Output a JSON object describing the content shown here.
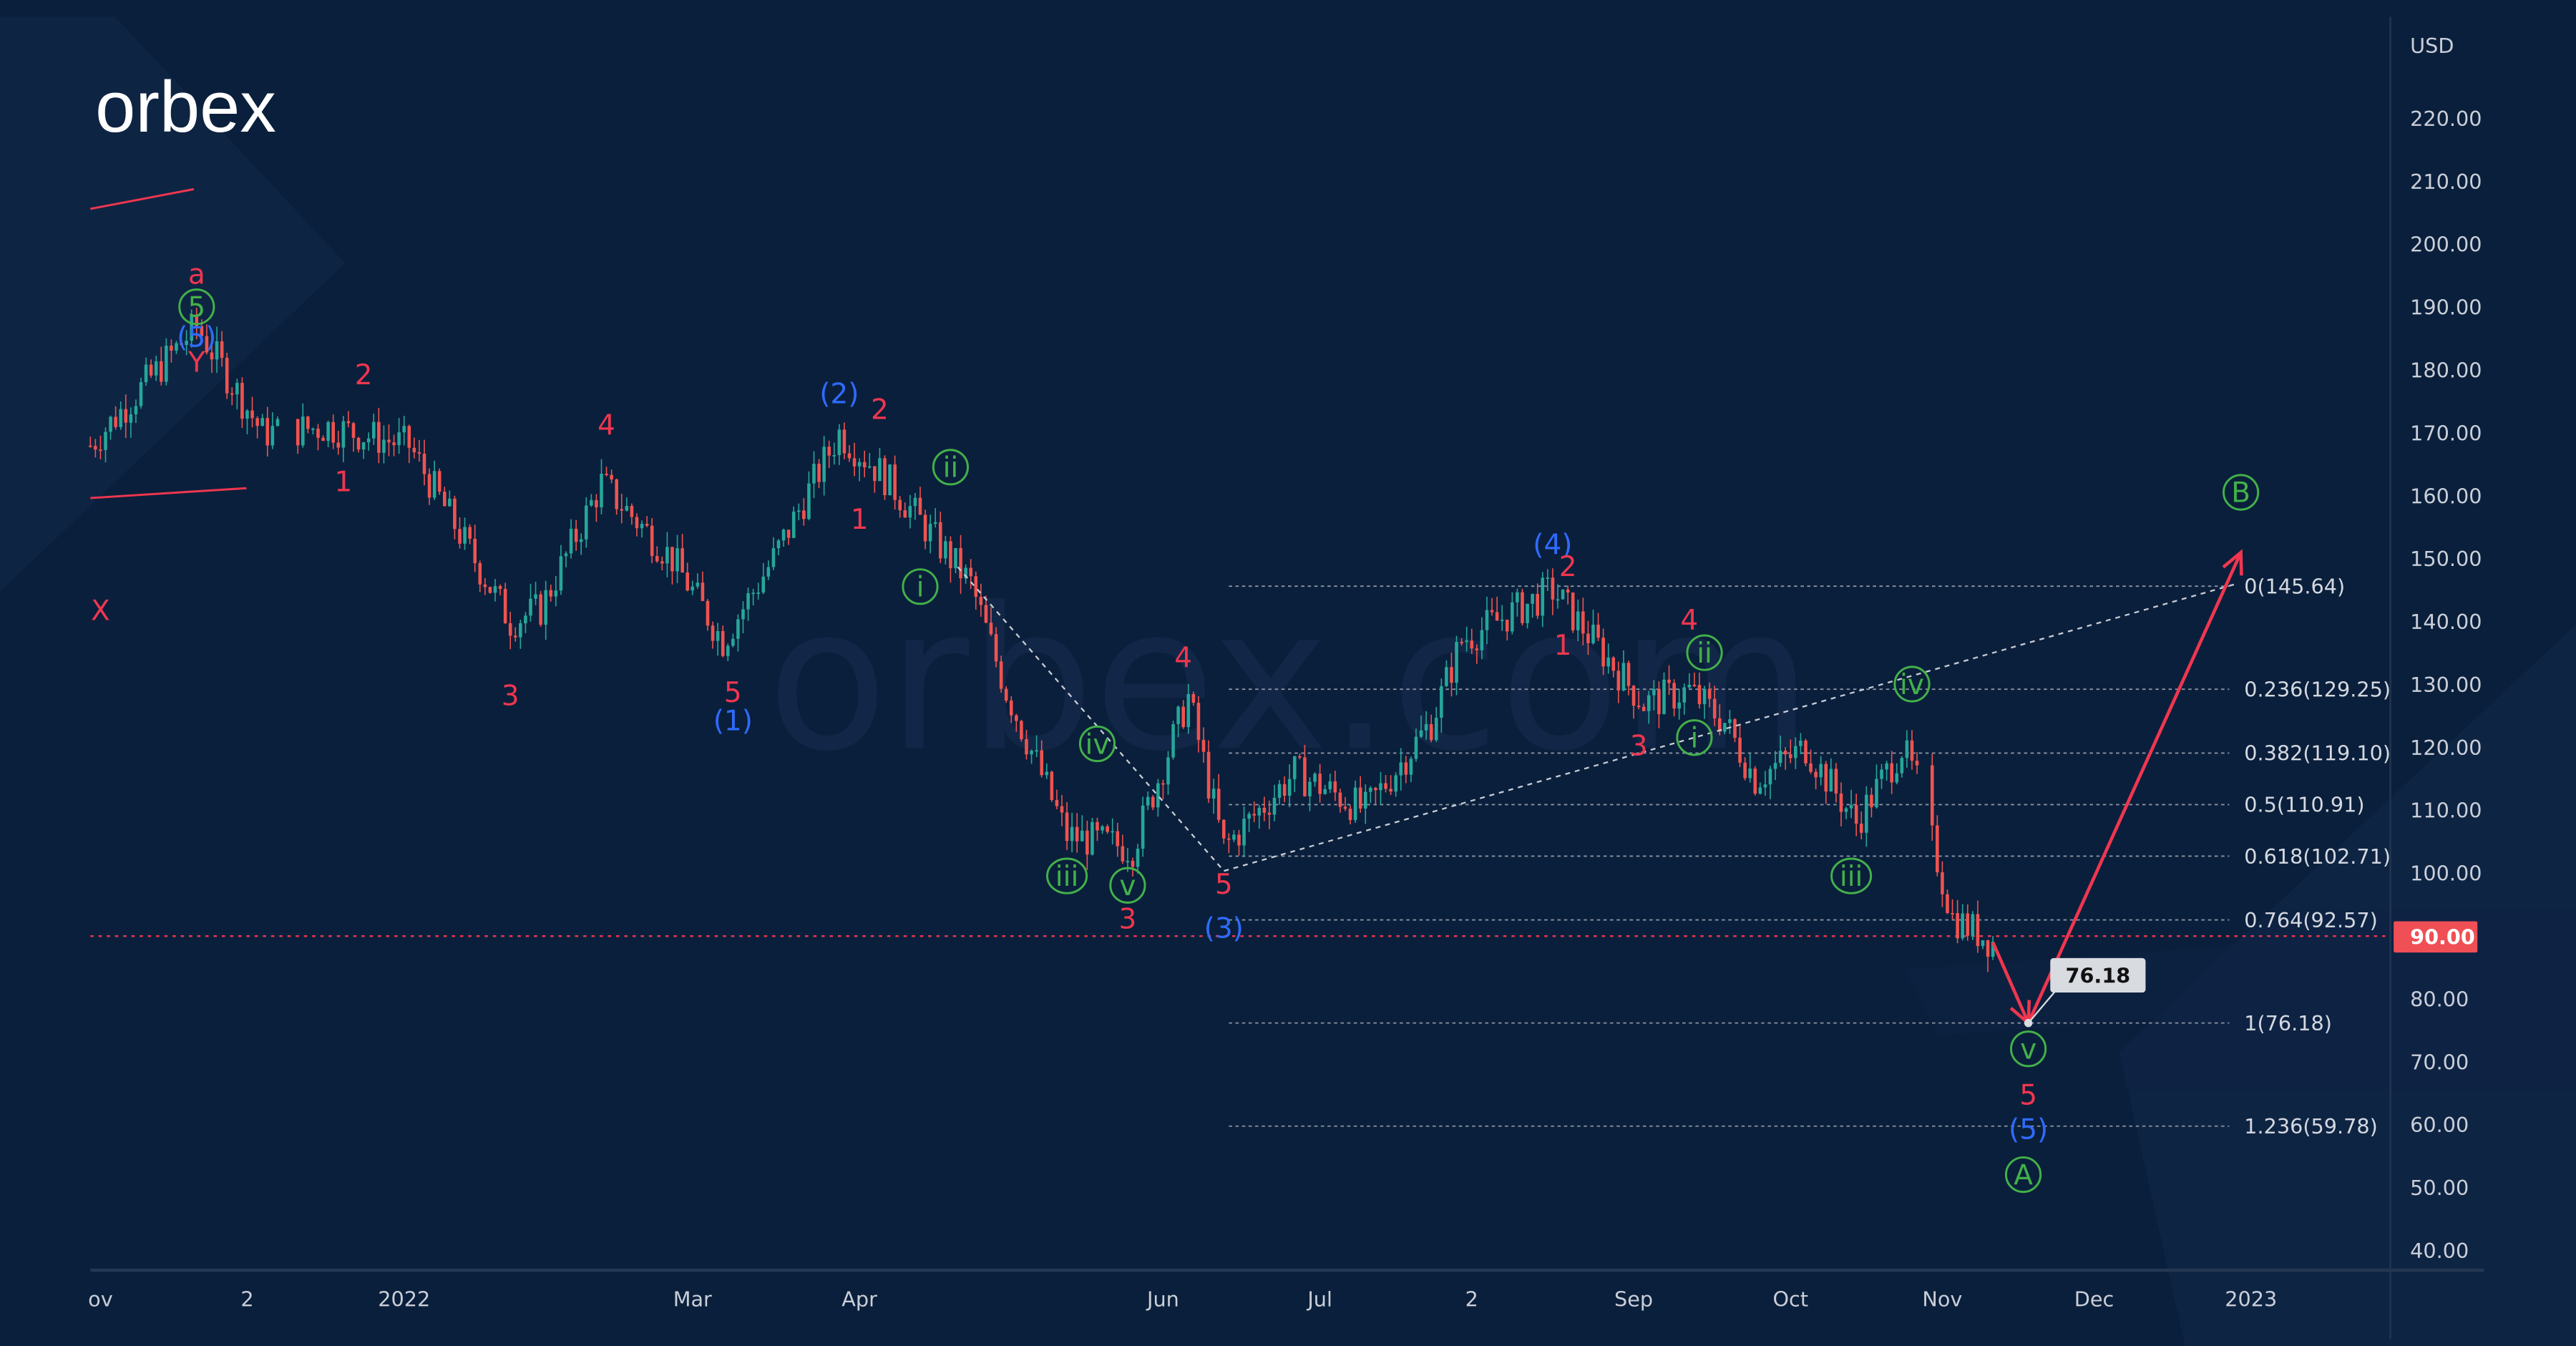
{
  "brand": {
    "logo_text": "orbex",
    "watermark": "orbex.com"
  },
  "colors": {
    "bg": "#0a1f3b",
    "red": "#f0364f",
    "blue": "#2f6bff",
    "green": "#43b049",
    "up": "#26a69a",
    "down": "#ef5350",
    "axis_text": "#c9ced8"
  },
  "chart_data": {
    "type": "candlestick",
    "currency_label": "USD",
    "ylim": [
      40,
      220
    ],
    "yticks": [
      "220.00",
      "210.00",
      "200.00",
      "190.00",
      "180.00",
      "170.00",
      "160.00",
      "150.00",
      "140.00",
      "130.00",
      "120.00",
      "110.00",
      "100.00",
      "90.00",
      "80.00",
      "70.00",
      "60.00",
      "50.00",
      "40.00"
    ],
    "ytick_values": [
      220,
      210,
      200,
      190,
      180,
      170,
      160,
      150,
      140,
      130,
      120,
      110,
      100,
      90,
      80,
      70,
      60,
      50,
      40
    ],
    "xticks": [
      {
        "label": "ov",
        "day": 2
      },
      {
        "label": "2",
        "day": 31
      },
      {
        "label": "2022",
        "day": 62
      },
      {
        "label": "Mar",
        "day": 119
      },
      {
        "label": "Apr",
        "day": 152
      },
      {
        "label": "Jun",
        "day": 212
      },
      {
        "label": "Jul",
        "day": 243
      },
      {
        "label": "2",
        "day": 273
      },
      {
        "label": "Sep",
        "day": 305
      },
      {
        "label": "Oct",
        "day": 336
      },
      {
        "label": "Nov",
        "day": 366
      },
      {
        "label": "Dec",
        "day": 396
      },
      {
        "label": "2023",
        "day": 427
      }
    ],
    "xlim_days": [
      0,
      455
    ],
    "price_path": [
      [
        0,
        168
      ],
      [
        21,
        187
      ],
      [
        34,
        170
      ],
      [
        47,
        171
      ],
      [
        63,
        168
      ],
      [
        83,
        140
      ],
      [
        89,
        142
      ],
      [
        101,
        162
      ],
      [
        115,
        150
      ],
      [
        125,
        137
      ],
      [
        135,
        150
      ],
      [
        148,
        170
      ],
      [
        157,
        163
      ],
      [
        174,
        146
      ],
      [
        181,
        129
      ],
      [
        193,
        106
      ],
      [
        206,
        104
      ],
      [
        217,
        128
      ],
      [
        224,
        104
      ],
      [
        238,
        116
      ],
      [
        252,
        110
      ],
      [
        265,
        124
      ],
      [
        271,
        137
      ],
      [
        289,
        145
      ],
      [
        307,
        127
      ],
      [
        316,
        129
      ],
      [
        323,
        124
      ],
      [
        329,
        115
      ],
      [
        339,
        120
      ],
      [
        349,
        108
      ],
      [
        358,
        120
      ],
      [
        363,
        111
      ],
      [
        364,
        105
      ],
      [
        368,
        93
      ],
      [
        376,
        89
      ]
    ],
    "current_price": "90.00",
    "fibonacci": {
      "levels": [
        {
          "label": "0(145.64)",
          "value": 145.64
        },
        {
          "label": "0.236(129.25)",
          "value": 129.25
        },
        {
          "label": "0.382(119.10)",
          "value": 119.1
        },
        {
          "label": "0.5(110.91)",
          "value": 110.91
        },
        {
          "label": "0.618(102.71)",
          "value": 102.71
        },
        {
          "label": "0.764(92.57)",
          "value": 92.57
        },
        {
          "label": "1(76.18)",
          "value": 76.18
        },
        {
          "label": "1.236(59.78)",
          "value": 59.78
        }
      ],
      "from_day": 225,
      "to_day": 424
    },
    "target_callout": "76.18",
    "projection": [
      [
        376,
        89
      ],
      [
        383,
        76.18
      ],
      [
        425,
        151
      ]
    ],
    "wave_labels": [
      {
        "t": "a",
        "c": "red",
        "d": 21,
        "p": 194
      },
      {
        "t": "5",
        "c": "green",
        "d": 21,
        "p": 188.5,
        "circle": true
      },
      {
        "t": "(5)",
        "c": "blue",
        "d": 21,
        "p": 184
      },
      {
        "t": "Y",
        "c": "red",
        "d": 21,
        "p": 180
      },
      {
        "t": "X",
        "c": "red",
        "d": 2,
        "p": 140.5
      },
      {
        "t": "2",
        "c": "red",
        "d": 54,
        "p": 178
      },
      {
        "t": "1",
        "c": "red",
        "d": 50,
        "p": 161
      },
      {
        "t": "4",
        "c": "red",
        "d": 102,
        "p": 170
      },
      {
        "t": "3",
        "c": "red",
        "d": 83,
        "p": 127
      },
      {
        "t": "5",
        "c": "red",
        "d": 127,
        "p": 127.5
      },
      {
        "t": "(1)",
        "c": "blue",
        "d": 127,
        "p": 123
      },
      {
        "t": "(2)",
        "c": "blue",
        "d": 148,
        "p": 175
      },
      {
        "t": "2",
        "c": "red",
        "d": 156,
        "p": 172.5
      },
      {
        "t": "1",
        "c": "red",
        "d": 152,
        "p": 155
      },
      {
        "t": "ii",
        "c": "green",
        "d": 170,
        "p": 163,
        "circle": true
      },
      {
        "t": "i",
        "c": "green",
        "d": 164,
        "p": 144,
        "circle": true
      },
      {
        "t": "4",
        "c": "red",
        "d": 216,
        "p": 133
      },
      {
        "t": "iv",
        "c": "green",
        "d": 199,
        "p": 119,
        "circle": true
      },
      {
        "t": "iii",
        "c": "green",
        "d": 193,
        "p": 98,
        "circle": true
      },
      {
        "t": "v",
        "c": "green",
        "d": 205,
        "p": 96.5,
        "circle": true
      },
      {
        "t": "5",
        "c": "red",
        "d": 224,
        "p": 97
      },
      {
        "t": "3",
        "c": "red",
        "d": 205,
        "p": 91.5
      },
      {
        "t": "(3)",
        "c": "blue",
        "d": 224,
        "p": 90
      },
      {
        "t": "(4)",
        "c": "blue",
        "d": 289,
        "p": 151
      },
      {
        "t": "2",
        "c": "red",
        "d": 292,
        "p": 147.5
      },
      {
        "t": "1",
        "c": "red",
        "d": 291,
        "p": 135
      },
      {
        "t": "4",
        "c": "red",
        "d": 316,
        "p": 139
      },
      {
        "t": "ii",
        "c": "green",
        "d": 319,
        "p": 133.5,
        "circle": true
      },
      {
        "t": "3",
        "c": "red",
        "d": 306,
        "p": 119
      },
      {
        "t": "i",
        "c": "green",
        "d": 317,
        "p": 120,
        "circle": true
      },
      {
        "t": "iv",
        "c": "green",
        "d": 360,
        "p": 128.5,
        "circle": true
      },
      {
        "t": "iii",
        "c": "green",
        "d": 348,
        "p": 98,
        "circle": true
      },
      {
        "t": "v",
        "c": "green",
        "d": 383,
        "p": 70.5,
        "circle": true
      },
      {
        "t": "5",
        "c": "red",
        "d": 383,
        "p": 63.5
      },
      {
        "t": "(5)",
        "c": "blue",
        "d": 383,
        "p": 58
      },
      {
        "t": "A",
        "c": "green",
        "d": 382,
        "p": 50.5,
        "circle": true
      },
      {
        "t": "B",
        "c": "green",
        "d": 425,
        "p": 159,
        "circle": true
      }
    ]
  }
}
